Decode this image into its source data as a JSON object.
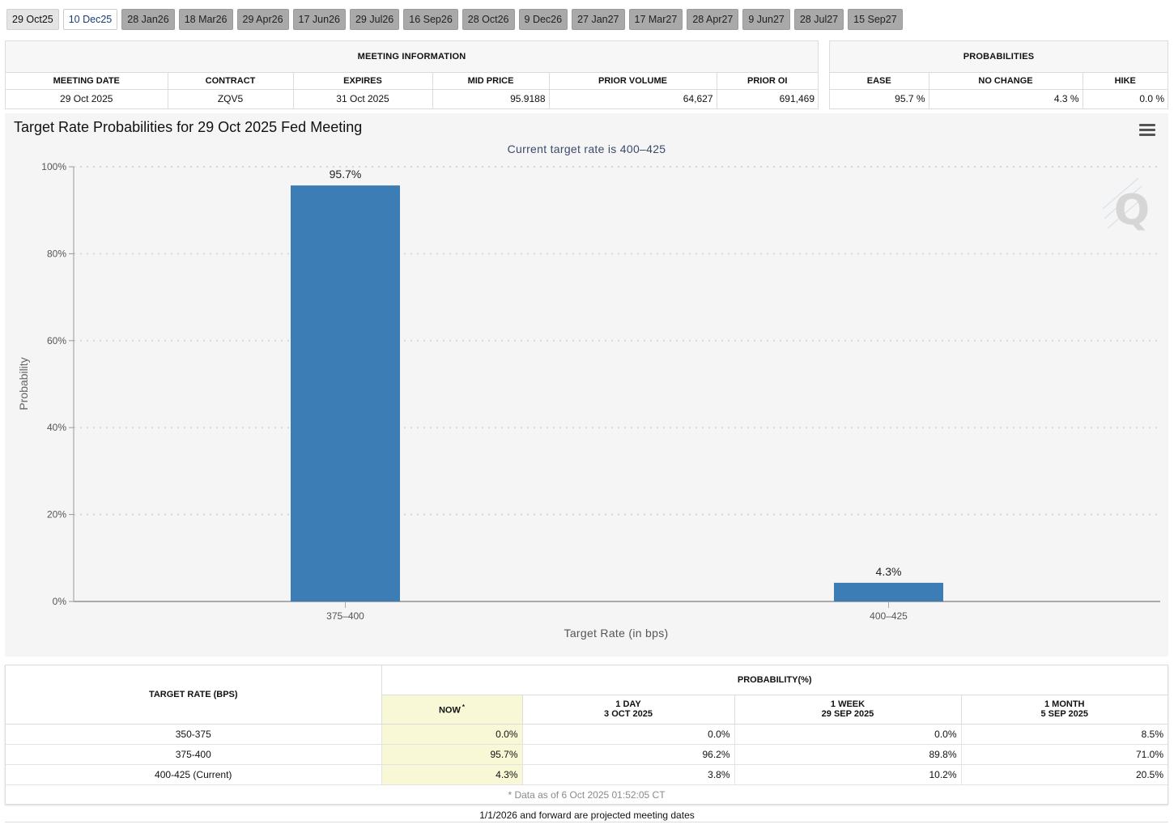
{
  "tabs": [
    "29 Oct25",
    "10 Dec25",
    "28 Jan26",
    "18 Mar26",
    "29 Apr26",
    "17 Jun26",
    "29 Jul26",
    "16 Sep26",
    "28 Oct26",
    "9 Dec26",
    "27 Jan27",
    "17 Mar27",
    "28 Apr27",
    "9 Jun27",
    "28 Jul27",
    "15 Sep27"
  ],
  "meeting_info": {
    "title": "MEETING INFORMATION",
    "headers": [
      "MEETING DATE",
      "CONTRACT",
      "EXPIRES",
      "MID PRICE",
      "PRIOR VOLUME",
      "PRIOR OI"
    ],
    "row": {
      "meeting_date": "29 Oct 2025",
      "contract": "ZQV5",
      "expires": "31 Oct 2025",
      "mid_price": "95.9188",
      "prior_volume": "64,627",
      "prior_oi": "691,469"
    }
  },
  "probabilities": {
    "title": "PROBABILITIES",
    "headers": [
      "EASE",
      "NO CHANGE",
      "HIKE"
    ],
    "row": {
      "ease": "95.7 %",
      "no_change": "4.3 %",
      "hike": "0.0 %"
    }
  },
  "chart": {
    "title": "Target Rate Probabilities for 29 Oct 2025 Fed Meeting",
    "subtitle": "Current target rate is 400–425",
    "logo": "Q"
  },
  "chart_data": {
    "type": "bar",
    "title": "Target Rate Probabilities for 29 Oct 2025 Fed Meeting",
    "subtitle": "Current target rate is 400–425",
    "categories": [
      "375–400",
      "400–425"
    ],
    "values": [
      95.7,
      4.3
    ],
    "value_labels": [
      "95.7%",
      "4.3%"
    ],
    "xlabel": "Target Rate (in bps)",
    "ylabel": "Probability",
    "ylim": [
      0,
      100
    ],
    "yticks": [
      "0%",
      "20%",
      "40%",
      "60%",
      "80%",
      "100%"
    ],
    "ytick_values": [
      0,
      20,
      40,
      60,
      80,
      100
    ],
    "color": "#3d7db6",
    "grid": true
  },
  "probability_table": {
    "target_rate_header": "TARGET RATE (BPS)",
    "group_header": "PROBABILITY(%)",
    "columns": [
      {
        "line1": "NOW",
        "sup": "*",
        "line2": ""
      },
      {
        "line1": "1 DAY",
        "line2": "3 OCT 2025"
      },
      {
        "line1": "1 WEEK",
        "line2": "29 SEP 2025"
      },
      {
        "line1": "1 MONTH",
        "line2": "5 SEP 2025"
      }
    ],
    "rows": [
      {
        "rate": "350-375",
        "now": "0.0%",
        "day": "0.0%",
        "week": "0.0%",
        "month": "8.5%"
      },
      {
        "rate": "375-400",
        "now": "95.7%",
        "day": "96.2%",
        "week": "89.8%",
        "month": "71.0%"
      },
      {
        "rate": "400-425 (Current)",
        "now": "4.3%",
        "day": "3.8%",
        "week": "10.2%",
        "month": "20.5%"
      }
    ],
    "footnote": "* Data as of 6 Oct 2025 01:52:05 CT"
  },
  "projected_note": "1/1/2026 and forward are projected meeting dates"
}
